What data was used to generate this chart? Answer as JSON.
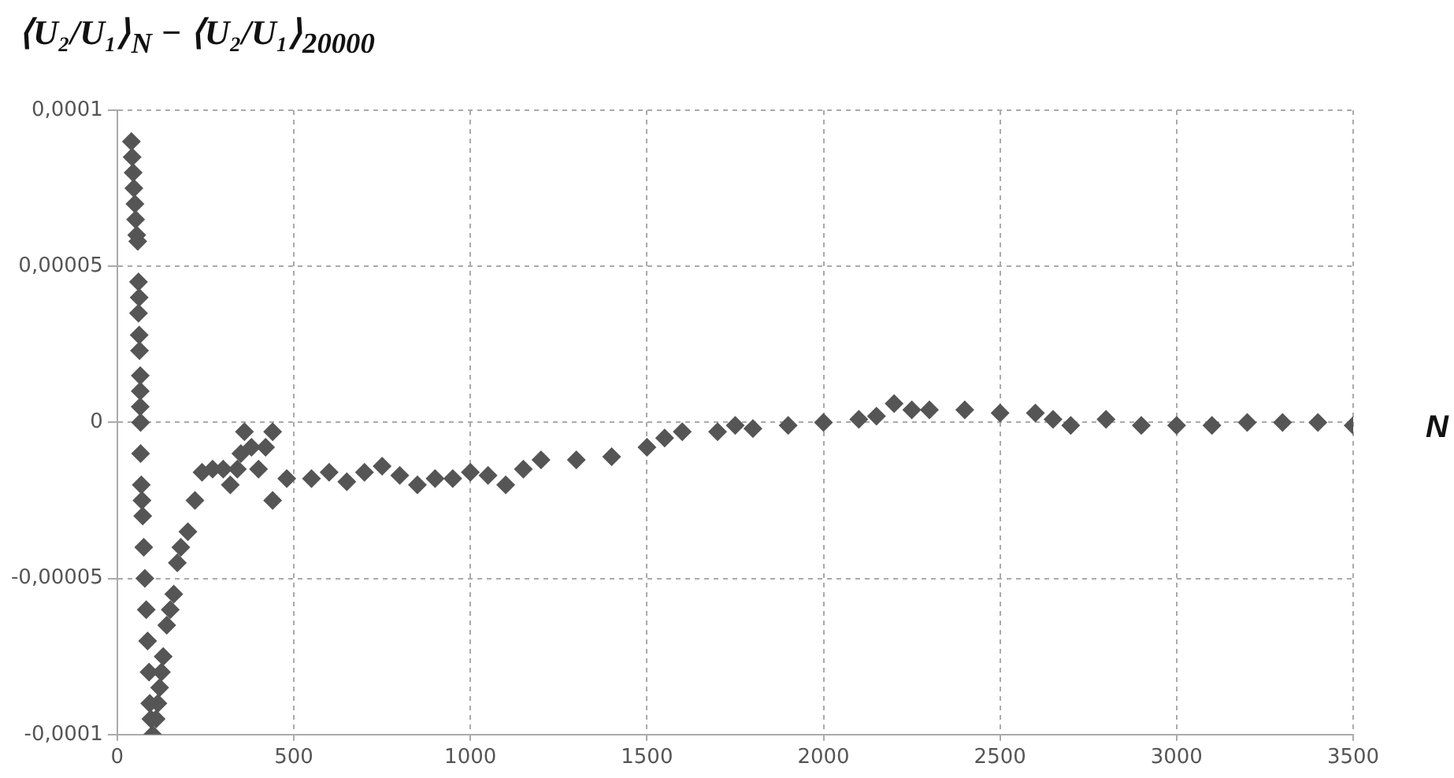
{
  "chart_data": {
    "type": "scatter",
    "ylabel": "⟨U₂/U₁⟩$_{N}$ − ⟨U₂/U₁⟩$_{20000}$",
    "xlabel": "N",
    "x": [
      40,
      42,
      45,
      47,
      50,
      52,
      55,
      58,
      60,
      62,
      60,
      62,
      63,
      65,
      65,
      65,
      66,
      66,
      68,
      70,
      72,
      75,
      78,
      82,
      86,
      90,
      92,
      95,
      100,
      110,
      115,
      120,
      125,
      130,
      140,
      150,
      160,
      170,
      180,
      200,
      220,
      240,
      270,
      300,
      320,
      340,
      350,
      360,
      380,
      400,
      420,
      440,
      440,
      480,
      550,
      600,
      650,
      700,
      750,
      800,
      850,
      900,
      950,
      1000,
      1050,
      1100,
      1150,
      1200,
      1300,
      1400,
      1500,
      1550,
      1600,
      1700,
      1750,
      1800,
      1900,
      2000,
      2100,
      2150,
      2200,
      2250,
      2300,
      2400,
      2500,
      2600,
      2650,
      2700,
      2800,
      2900,
      3000,
      3100,
      3200,
      3300,
      3400,
      3500
    ],
    "values": [
      9e-05,
      8.5e-05,
      8e-05,
      7.5e-05,
      7e-05,
      6.5e-05,
      6e-05,
      5.8e-05,
      4.5e-05,
      4e-05,
      3.5e-05,
      2.8e-05,
      2.3e-05,
      1.5e-05,
      1e-05,
      5e-06,
      0,
      -1e-05,
      -2e-05,
      -2.5e-05,
      -3e-05,
      -4e-05,
      -5e-05,
      -6e-05,
      -7e-05,
      -8e-05,
      -9e-05,
      -9.5e-05,
      -0.0001,
      -9.5e-05,
      -9e-05,
      -8.5e-05,
      -8e-05,
      -7.5e-05,
      -6.5e-05,
      -6e-05,
      -5.5e-05,
      -4.5e-05,
      -4e-05,
      -3.5e-05,
      -2.5e-05,
      -1.6e-05,
      -1.5e-05,
      -1.5e-05,
      -2e-05,
      -1.5e-05,
      -1e-05,
      -3e-06,
      -8e-06,
      -1.5e-05,
      -8e-06,
      -3e-06,
      -2.5e-05,
      -1.8e-05,
      -1.8e-05,
      -1.6e-05,
      -1.9e-05,
      -1.6e-05,
      -1.4e-05,
      -1.7e-05,
      -2e-05,
      -1.8e-05,
      -1.8e-05,
      -1.6e-05,
      -1.7e-05,
      -2e-05,
      -1.5e-05,
      -1.2e-05,
      -1.2e-05,
      -1.1e-05,
      -8e-06,
      -5e-06,
      -3e-06,
      -3e-06,
      -1e-06,
      -2e-06,
      -1e-06,
      0,
      1e-06,
      2e-06,
      6e-06,
      4e-06,
      4e-06,
      4e-06,
      3e-06,
      3e-06,
      1e-06,
      -1e-06,
      1e-06,
      -1e-06,
      -1e-06,
      -1e-06,
      0,
      0,
      0,
      -1e-06
    ],
    "color": "#555555",
    "marker": "diamond",
    "grid": true,
    "xlim": [
      0,
      3500
    ],
    "xticks": [
      0,
      500,
      1000,
      1500,
      2000,
      2500,
      3000,
      3500
    ],
    "ylim": [
      -0.0001,
      0.0001
    ],
    "yticks": [
      {
        "value": -0.0001,
        "label": "-0,0001"
      },
      {
        "value": -5e-05,
        "label": "-0,00005"
      },
      0,
      {
        "value": 5e-05,
        "label": "0,00005"
      },
      {
        "value": 0.0001,
        "label": "0,0001"
      }
    ]
  }
}
